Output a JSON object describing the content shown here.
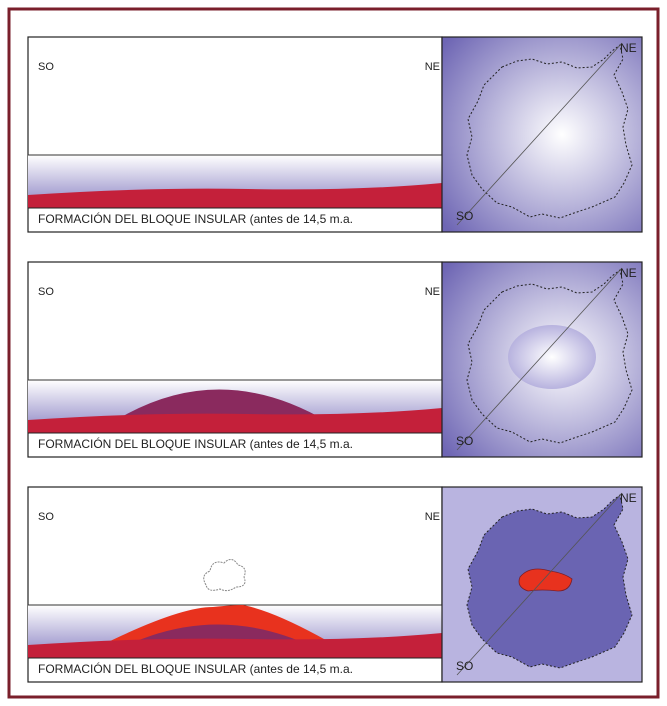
{
  "panels": [
    {
      "left_label": "SO",
      "right_label": "NE",
      "caption": "FORMACIÓN DEL BLOQUE INSULAR  (antes de 14,5 m.a.",
      "map_top_label": "NE",
      "map_bottom_label": "SO"
    },
    {
      "left_label": "SO",
      "right_label": "NE",
      "caption": "FORMACIÓN DEL BLOQUE INSULAR  (antes de 14,5 m.a.",
      "map_top_label": "NE",
      "map_bottom_label": "SO"
    },
    {
      "left_label": "SO",
      "right_label": "NE",
      "caption": "FORMACIÓN DEL BLOQUE INSULAR  (antes de 14,5 m.a.",
      "map_top_label": "NE",
      "map_bottom_label": "SO"
    }
  ]
}
